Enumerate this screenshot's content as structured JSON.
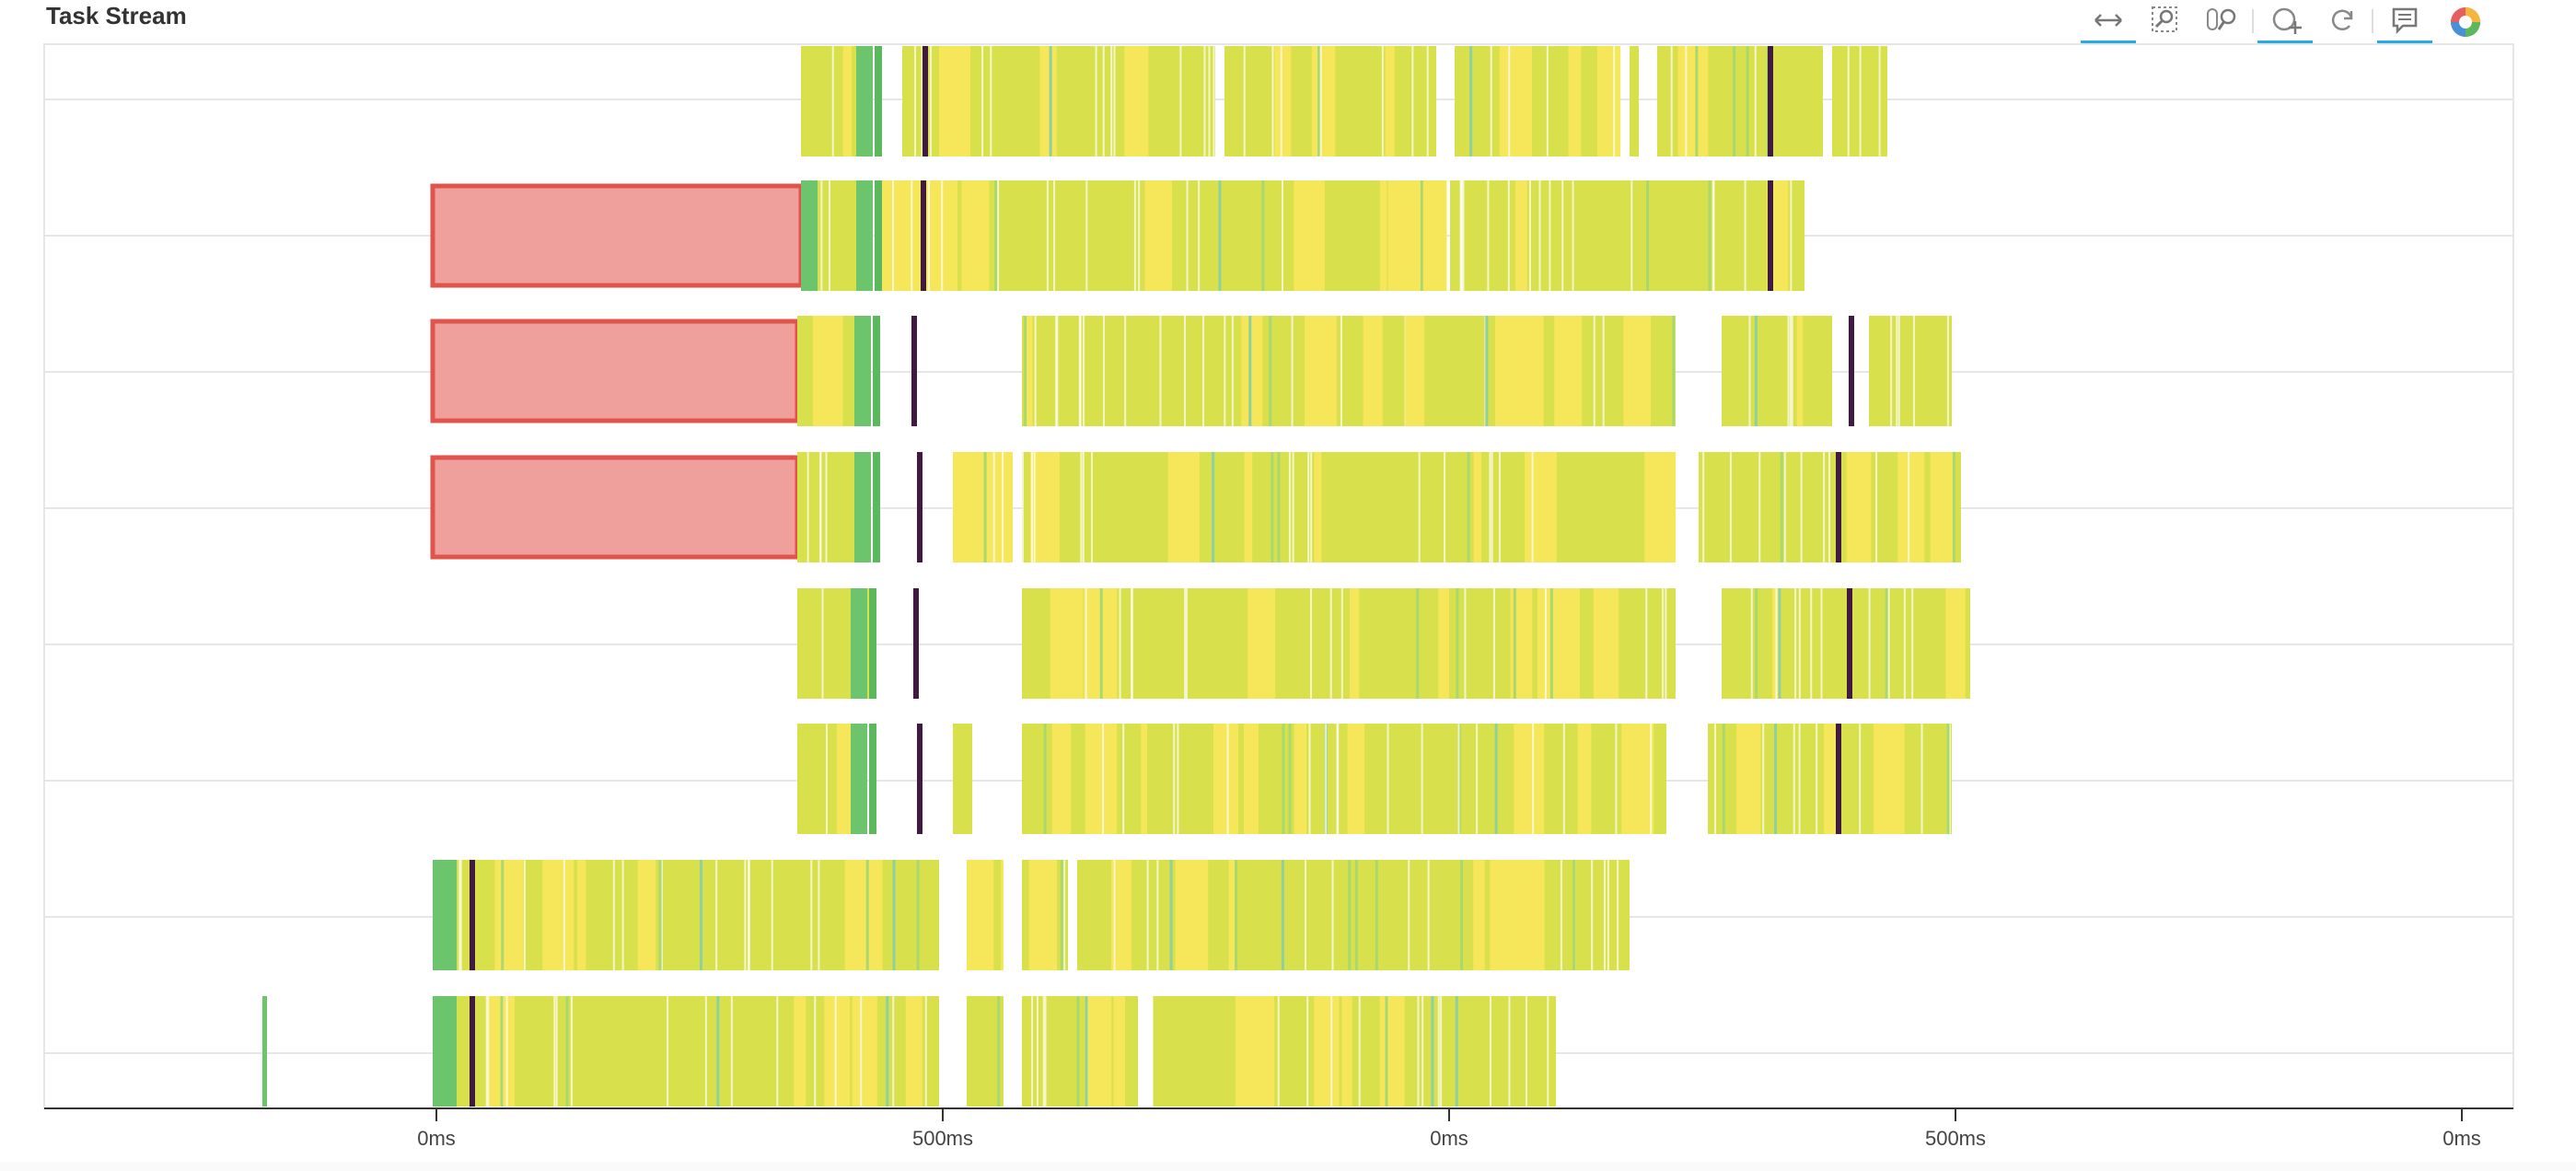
{
  "panel": {
    "title": "Task Stream"
  },
  "toolbar": {
    "tools": [
      {
        "name": "pan-tool",
        "icon": "xpan-icon",
        "active": true
      },
      {
        "name": "box-zoom-tool",
        "icon": "box-zoom-icon",
        "active": false
      },
      {
        "name": "wheel-zoom-tool",
        "icon": "wheel-zoom-icon",
        "active": false
      },
      {
        "name": "zoom-in-tool",
        "icon": "zoom-in-icon",
        "active": true
      },
      {
        "name": "reset-tool",
        "icon": "reset-icon",
        "active": false
      },
      {
        "name": "hover-tool",
        "icon": "hover-tooltip-icon",
        "active": true
      },
      {
        "name": "bokeh-logo",
        "icon": "bokeh-logo-icon",
        "active": false
      }
    ]
  },
  "colors": {
    "compute_yellow_green": "#d8e04c",
    "compute_yellow": "#f5e65a",
    "transfer_red": "#f0a09c",
    "transfer_red_border": "#e0544c",
    "deserialize_green": "#6cc46c",
    "dark_marker": "#401a40",
    "grid": "#e6e6e6",
    "axis": "#333333"
  },
  "axis": {
    "tick_labels": [
      "0ms",
      "500ms",
      "0ms",
      "500ms",
      "0ms"
    ]
  },
  "chart_data": {
    "type": "gantt",
    "rows": 8,
    "legend": [],
    "tasks": [
      {
        "row": 0,
        "kind": "compute",
        "start": 870,
        "end": 892
      },
      {
        "row": 0,
        "kind": "transfer",
        "start": 892,
        "end": 940
      },
      {
        "row": 0,
        "kind": "compute",
        "start": 980,
        "end": 1150
      },
      {
        "row": 0,
        "kind": "compute",
        "start": 1150,
        "end": 1320
      },
      {
        "row": 0,
        "kind": "compute",
        "start": 1330,
        "end": 1560
      },
      {
        "row": 0,
        "kind": "compute",
        "start": 1580,
        "end": 1760
      },
      {
        "row": 0,
        "kind": "compute",
        "start": 1770,
        "end": 1780
      },
      {
        "row": 0,
        "kind": "compute",
        "start": 1800,
        "end": 1980
      },
      {
        "row": 0,
        "kind": "compute",
        "start": 1990,
        "end": 2050
      },
      {
        "row": 1,
        "kind": "transfer_red",
        "start": 470,
        "end": 870
      },
      {
        "row": 1,
        "kind": "deserialize",
        "start": 870,
        "end": 888
      },
      {
        "row": 1,
        "kind": "compute",
        "start": 888,
        "end": 940
      },
      {
        "row": 1,
        "kind": "compute_yellow",
        "start": 955,
        "end": 1040
      },
      {
        "row": 1,
        "kind": "compute",
        "start": 1040,
        "end": 1560
      },
      {
        "row": 1,
        "kind": "compute",
        "start": 1575,
        "end": 1960
      },
      {
        "row": 2,
        "kind": "transfer_red",
        "start": 470,
        "end": 866
      },
      {
        "row": 2,
        "kind": "compute",
        "start": 866,
        "end": 940
      },
      {
        "row": 2,
        "kind": "compute",
        "start": 1110,
        "end": 1820
      },
      {
        "row": 2,
        "kind": "compute",
        "start": 1870,
        "end": 1990
      },
      {
        "row": 2,
        "kind": "compute",
        "start": 2030,
        "end": 2120
      },
      {
        "row": 3,
        "kind": "transfer_red",
        "start": 470,
        "end": 866
      },
      {
        "row": 3,
        "kind": "compute",
        "start": 866,
        "end": 940
      },
      {
        "row": 3,
        "kind": "compute_yellow",
        "start": 1035,
        "end": 1100
      },
      {
        "row": 3,
        "kind": "compute",
        "start": 1110,
        "end": 1810
      },
      {
        "row": 3,
        "kind": "compute",
        "start": 1845,
        "end": 2130
      },
      {
        "row": 4,
        "kind": "compute",
        "start": 866,
        "end": 950
      },
      {
        "row": 4,
        "kind": "compute",
        "start": 1110,
        "end": 1820
      },
      {
        "row": 4,
        "kind": "compute",
        "start": 1870,
        "end": 2140
      },
      {
        "row": 5,
        "kind": "compute",
        "start": 866,
        "end": 940
      },
      {
        "row": 5,
        "kind": "compute",
        "start": 1035,
        "end": 1056
      },
      {
        "row": 5,
        "kind": "compute",
        "start": 1110,
        "end": 1810
      },
      {
        "row": 5,
        "kind": "compute",
        "start": 1855,
        "end": 2120
      },
      {
        "row": 6,
        "kind": "deserialize",
        "start": 470,
        "end": 490
      },
      {
        "row": 6,
        "kind": "compute",
        "start": 490,
        "end": 1020
      },
      {
        "row": 6,
        "kind": "compute",
        "start": 1050,
        "end": 1090
      },
      {
        "row": 6,
        "kind": "compute",
        "start": 1110,
        "end": 1770
      },
      {
        "row": 7,
        "kind": "deserialize",
        "start": 285,
        "end": 290
      },
      {
        "row": 7,
        "kind": "compute",
        "start": 470,
        "end": 1020
      },
      {
        "row": 7,
        "kind": "compute",
        "start": 1050,
        "end": 1690
      }
    ]
  }
}
